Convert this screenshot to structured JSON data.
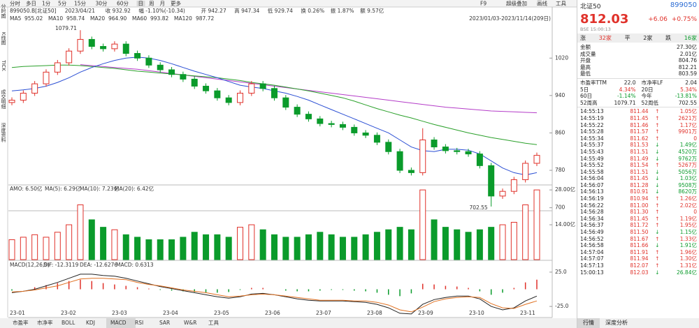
{
  "toolbar": {
    "tabs": [
      "分时",
      "多日",
      "1分",
      "5分",
      "15分",
      "30分",
      "60分",
      "日",
      "周",
      "月",
      "更多"
    ],
    "active": "日",
    "right": [
      "F9",
      "超级叠加",
      "画线",
      "工具"
    ]
  },
  "side_tabs": [
    "分时图",
    "K线图",
    "TICK",
    "成交明细",
    "深度资料"
  ],
  "info": [
    "899050.B[北证50]",
    "2023/04/21",
    "收 932.92",
    "幅 -1.10%(-10.34)",
    "开 942.27",
    "高 947.34",
    "低 929.74",
    "换 0.26%",
    "振 1.87%",
    "额 9.57亿"
  ],
  "range": "2023/01/03-2023/11/14(209日)",
  "chart_data": {
    "type": "candlestick",
    "ma_legend": [
      {
        "name": "MA5",
        "value": "955.02",
        "color": "#e0312a"
      },
      {
        "name": "MA10",
        "value": "958.74",
        "color": "#2b6cd4"
      },
      {
        "name": "MA20",
        "value": "964.90",
        "color": "#2b4fd4"
      },
      {
        "name": "MA60",
        "value": "993.82",
        "color": "#b43cc8"
      },
      {
        "name": "MA120",
        "value": "987.72",
        "color": "#2aa02a"
      }
    ],
    "ylim": [
      695,
      1095
    ],
    "yticks": [
      1020,
      940,
      860,
      780,
      700
    ],
    "annotations": [
      {
        "text": "1079.71",
        "index": 6
      },
      {
        "text": "702.55",
        "index": 42
      }
    ],
    "up_color": "#e0312a",
    "down_color": "#0a9b2b",
    "open": [
      925,
      930,
      945,
      965,
      990,
      1010,
      1035,
      1060,
      1045,
      1040,
      1050,
      1030,
      1020,
      1005,
      995,
      985,
      975,
      960,
      950,
      935,
      925,
      945,
      965,
      955,
      935,
      915,
      900,
      890,
      880,
      878,
      872,
      860,
      855,
      840,
      820,
      780,
      775,
      845,
      830,
      822,
      820,
      815,
      790,
      725,
      735,
      760,
      795
    ],
    "high": [
      936,
      951,
      971,
      996,
      1016,
      1041,
      1079.71,
      1066,
      1051,
      1056,
      1056,
      1036,
      1026,
      1011,
      1001,
      991,
      981,
      966,
      956,
      941,
      951,
      971,
      971,
      961,
      941,
      921,
      906,
      896,
      886,
      884,
      878,
      866,
      861,
      846,
      826,
      786,
      870,
      851,
      836,
      828,
      826,
      821,
      796,
      741,
      766,
      801,
      818
    ],
    "low": [
      919,
      924,
      939,
      959,
      984,
      1004,
      1029,
      1039,
      1034,
      1034,
      1024,
      1014,
      999,
      989,
      979,
      969,
      954,
      944,
      929,
      919,
      919,
      939,
      949,
      929,
      909,
      894,
      884,
      874,
      872,
      866,
      854,
      849,
      834,
      814,
      774,
      769,
      769,
      824,
      816,
      814,
      809,
      784,
      702.55,
      719,
      729,
      754,
      789
    ],
    "close": [
      930,
      945,
      965,
      990,
      1010,
      1035,
      1060,
      1045,
      1040,
      1050,
      1030,
      1020,
      1005,
      995,
      985,
      975,
      960,
      950,
      935,
      925,
      945,
      965,
      955,
      935,
      915,
      900,
      890,
      880,
      878,
      872,
      860,
      855,
      840,
      820,
      780,
      775,
      845,
      830,
      822,
      820,
      815,
      790,
      725,
      735,
      760,
      795,
      812
    ],
    "lines": [
      {
        "color": "#b43cc8",
        "values": [
          null,
          null,
          null,
          null,
          null,
          null,
          1006,
          1004,
          1002,
          1000,
          998,
          996,
          993,
          990,
          987,
          984,
          981,
          978,
          975,
          972,
          969,
          966,
          963,
          960,
          957,
          954,
          951,
          948,
          945,
          942,
          939,
          936,
          933,
          930,
          927,
          924,
          921,
          918,
          915,
          913,
          911,
          909,
          907,
          906,
          905,
          904,
          903
        ]
      },
      {
        "color": "#2aa02a",
        "values": [
          1000,
          1002,
          1003,
          1004,
          1005,
          1005,
          1004,
          1002,
          1000,
          998,
          995,
          992,
          990,
          988,
          986,
          984,
          982,
          980,
          978,
          975,
          972,
          968,
          965,
          962,
          958,
          954,
          950,
          945,
          940,
          935,
          928,
          920,
          912,
          905,
          898,
          892,
          885,
          878,
          872,
          866,
          860,
          855,
          850,
          846,
          842,
          838,
          835
        ]
      },
      {
        "color": "#2b4fd4",
        "values": [
          950,
          952,
          955,
          960,
          968,
          978,
          990,
          1000,
          1008,
          1015,
          1020,
          1022,
          1020,
          1015,
          1008,
          1000,
          992,
          985,
          978,
          970,
          962,
          958,
          955,
          950,
          945,
          938,
          930,
          920,
          910,
          900,
          890,
          880,
          870,
          860,
          845,
          830,
          822,
          820,
          825,
          825,
          823,
          815,
          800,
          785,
          775,
          770,
          775
        ]
      }
    ],
    "months": [
      "23-01",
      "23-02",
      "23-03",
      "23-04",
      "23-05",
      "23-06",
      "23-07",
      "23-08",
      "23-09",
      "23-10",
      "23-11"
    ],
    "volume": {
      "legend": [
        "AMO: 6.50亿",
        "MA(5): 6.29亿",
        "MA(10): 7.23亿",
        "MA(20): 6.42亿"
      ],
      "ylim": [
        0,
        30
      ],
      "yticks": [
        {
          "value": 28,
          "label": "28.00亿"
        },
        {
          "value": 14,
          "label": "14.00亿"
        }
      ],
      "values": [
        8,
        9,
        10,
        9,
        11,
        14,
        22,
        16,
        13,
        12,
        10,
        9,
        8,
        8,
        8,
        9,
        11,
        10,
        10,
        9,
        13,
        14,
        12,
        10,
        9,
        9,
        10,
        11,
        10,
        9,
        9,
        10,
        11,
        12,
        13,
        12,
        28,
        16,
        13,
        12,
        11,
        12,
        13,
        14,
        15,
        22,
        28
      ]
    },
    "macd": {
      "legend": [
        "MACD(12,26,9)",
        "DIF: -12.3119",
        "DEA: -12.6276",
        "MACD: 0.6313"
      ],
      "ylim": [
        -30,
        30
      ],
      "yticks": [
        {
          "value": 25,
          "label": "25.0"
        },
        {
          "value": -25,
          "label": "-25.0"
        }
      ],
      "hist": [
        -2,
        0,
        3,
        6,
        9,
        12,
        14,
        12,
        9,
        7,
        5,
        3,
        1,
        -1,
        -2,
        -3,
        -4,
        -5,
        -5,
        -4,
        -1,
        2,
        2,
        0,
        -2,
        -3,
        -3,
        -2,
        -1,
        -1,
        -2,
        -3,
        -5,
        -8,
        -10,
        -6,
        8,
        7,
        5,
        4,
        2,
        -3,
        -8,
        -5,
        2,
        10,
        14
      ],
      "dif": [
        -5,
        -3,
        0,
        5,
        10,
        16,
        22,
        22,
        20,
        19,
        16,
        12,
        8,
        4,
        1,
        -2,
        -5,
        -8,
        -11,
        -13,
        -11,
        -7,
        -6,
        -8,
        -11,
        -14,
        -16,
        -17,
        -17,
        -17,
        -18,
        -19,
        -22,
        -27,
        -35,
        -36,
        -22,
        -15,
        -12,
        -10,
        -10,
        -14,
        -25,
        -30,
        -27,
        -17,
        -10
      ],
      "dea": [
        -4,
        -3,
        -1,
        2,
        5,
        10,
        15,
        16,
        16,
        15,
        14,
        10,
        7,
        5,
        2,
        -1,
        -3,
        -5,
        -8,
        -11,
        -10,
        -8,
        -7,
        -8,
        -10,
        -12,
        -14,
        -16,
        -16,
        -16,
        -17,
        -17,
        -19,
        -23,
        -30,
        -33,
        -26,
        -18,
        -14,
        -12,
        -11,
        -12,
        -21,
        -27,
        -28,
        -22,
        -17
      ]
    }
  },
  "bottom_tabs": [
    "市盈率",
    "市净率",
    "BOLL",
    "KDJ",
    "MACD",
    "RSI",
    "SAR",
    "W&R",
    "工具"
  ],
  "bottom_active": "MACD",
  "quote": {
    "name": "北证50",
    "code": "899050",
    "price": "812.03",
    "change": "+6.06",
    "pct": "+0.75%",
    "sub": "BSE 15:00:13",
    "breadth": [
      "涨",
      "32家",
      "平",
      "2家",
      "跌",
      "16家"
    ],
    "rows": [
      [
        "金额",
        "27.30亿"
      ],
      [
        "成交量",
        "2.01亿"
      ],
      [
        "开盘",
        "804.76"
      ],
      [
        "最高",
        "812.21"
      ],
      [
        "最低",
        "803.59"
      ]
    ],
    "stats": [
      [
        "市盈率TTM",
        "22.0",
        "市净率LF",
        "2.04"
      ],
      [
        "5日",
        "4.34%",
        "20日",
        "5.34%"
      ],
      [
        "60日",
        "-1.14%",
        "今年",
        "-13.81%"
      ],
      [
        "52周高",
        "1079.71",
        "52周低",
        "702.55"
      ]
    ],
    "ticks": [
      [
        "14:55:13",
        "811.44",
        "↑",
        "1.05亿"
      ],
      [
        "14:55:19",
        "811.45",
        "↑",
        "2621万"
      ],
      [
        "14:55:22",
        "811.46",
        "↑",
        "1.17亿"
      ],
      [
        "14:55:28",
        "811.57",
        "↑",
        "9901万"
      ],
      [
        "14:55:34",
        "811.62",
        "↑",
        "0"
      ],
      [
        "14:55:37",
        "811.53",
        "↓",
        "1.49亿"
      ],
      [
        "14:55:43",
        "811.51",
        "↓",
        "4520万"
      ],
      [
        "14:55:49",
        "811.49",
        "↓",
        "9762万"
      ],
      [
        "14:55:52",
        "811.54",
        "↑",
        "5267万"
      ],
      [
        "14:55:58",
        "811.51",
        "↓",
        "5056万"
      ],
      [
        "14:56:04",
        "811.45",
        "↓",
        "1.03亿"
      ],
      [
        "14:56:07",
        "811.28",
        "↓",
        "9508万"
      ],
      [
        "14:56:13",
        "810.91",
        "↓",
        "8620万"
      ],
      [
        "14:56:19",
        "810.94",
        "↑",
        "1.26亿"
      ],
      [
        "14:56:22",
        "811.00",
        "↑",
        "2.02亿"
      ],
      [
        "14:56:28",
        "811.30",
        "↑",
        "0"
      ],
      [
        "14:56:34",
        "811.45",
        "↑",
        "1.19亿"
      ],
      [
        "14:56:37",
        "811.72",
        "↑",
        "1.95亿"
      ],
      [
        "14:56:49",
        "811.50",
        "↓",
        "1.15亿"
      ],
      [
        "14:56:52",
        "811.67",
        "↑",
        "1.33亿"
      ],
      [
        "14:56:58",
        "811.66",
        "↓",
        "1.91亿"
      ],
      [
        "14:57:04",
        "811.91",
        "↑",
        "1.96亿"
      ],
      [
        "14:57:07",
        "811.94",
        "↑",
        "1.30亿"
      ],
      [
        "14:57:13",
        "812.07",
        "↑",
        "1.31亿"
      ],
      [
        "15:00:13",
        "812.03",
        "↓",
        "26.84亿"
      ]
    ],
    "tabs": [
      "行情",
      "深度分析"
    ]
  }
}
